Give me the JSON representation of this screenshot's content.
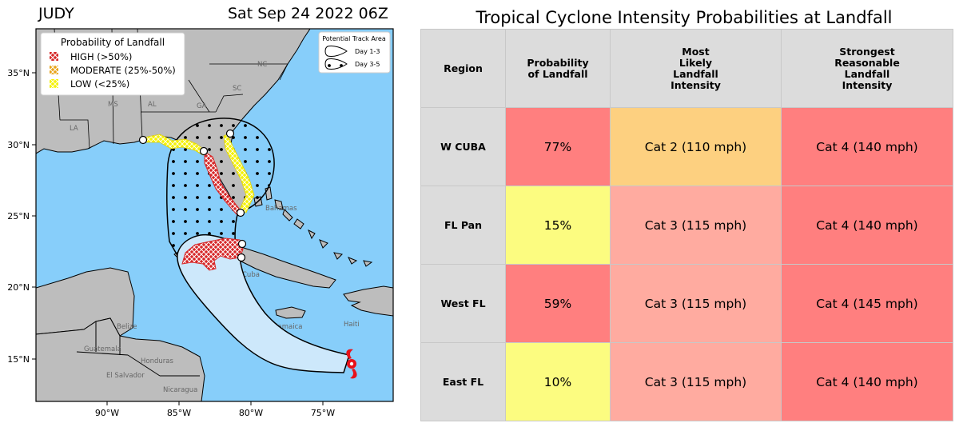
{
  "storm_name": "JUDY",
  "advisory_time": "Sat Sep 24 2022 06Z",
  "legend": {
    "title": "Probability of Landfall",
    "items": [
      {
        "label": "HIGH  (>50%)",
        "color": "#d62728"
      },
      {
        "label": "MODERATE (25%-50%)",
        "color": "#e8a317"
      },
      {
        "label": "LOW   (<25%)",
        "color": "#f5f20a"
      }
    ]
  },
  "track_legend": {
    "title": "Potential Track Area",
    "day13": "Day 1-3",
    "day35": "Day 3-5"
  },
  "lat_labels": [
    "35°N",
    "30°N",
    "25°N",
    "20°N",
    "15°N"
  ],
  "lon_labels": [
    "90°W",
    "85°W",
    "80°W",
    "75°W"
  ],
  "place_labels": {
    "nc": "NC",
    "sc": "SC",
    "ga": "GA",
    "al": "AL",
    "ms": "MS",
    "la": "LA",
    "bahamas": "Bahamas",
    "cuba": "Cuba",
    "jamaica": "Jamaica",
    "haiti": "Haiti",
    "belize": "Belize",
    "guatemala": "Guatemala",
    "honduras": "Honduras",
    "el_salvador": "El Salvador",
    "nicaragua": "Nicaragua"
  },
  "colors": {
    "ocean": "#87cefa",
    "land": "#bdbdbd",
    "high": "#d62728",
    "moderate": "#e8a317",
    "low": "#f5f20a",
    "storm": "#e8121a",
    "header_bg": "#dcdcdc"
  },
  "table": {
    "title": "Tropical Cyclone Intensity Probabilities at Landfall",
    "headers": [
      "Region",
      "Probability\nof Landfall",
      "Most\nLikely\nLandfall\nIntensity",
      "Strongest\nReasonable\nLandfall\nIntensity"
    ],
    "rows": [
      {
        "region": "W CUBA",
        "probability": "77%",
        "likely": "Cat 2 (110 mph)",
        "strongest": "Cat 4 (140 mph)",
        "prob_color": "#ff7f7f",
        "likely_color": "#fdd080",
        "strongest_color": "#ff7f7f"
      },
      {
        "region": "FL Pan",
        "probability": "15%",
        "likely": "Cat 3 (115 mph)",
        "strongest": "Cat 4 (140 mph)",
        "prob_color": "#fcfc80",
        "likely_color": "#ffaba0",
        "strongest_color": "#ff7f7f"
      },
      {
        "region": "West FL",
        "probability": "59%",
        "likely": "Cat 3 (115 mph)",
        "strongest": "Cat 4 (145 mph)",
        "prob_color": "#ff7f7f",
        "likely_color": "#ffaba0",
        "strongest_color": "#ff7f7f"
      },
      {
        "region": "East FL",
        "probability": "10%",
        "likely": "Cat 3 (115 mph)",
        "strongest": "Cat 4 (140 mph)",
        "prob_color": "#fcfc80",
        "likely_color": "#ffaba0",
        "strongest_color": "#ff7f7f"
      }
    ]
  }
}
